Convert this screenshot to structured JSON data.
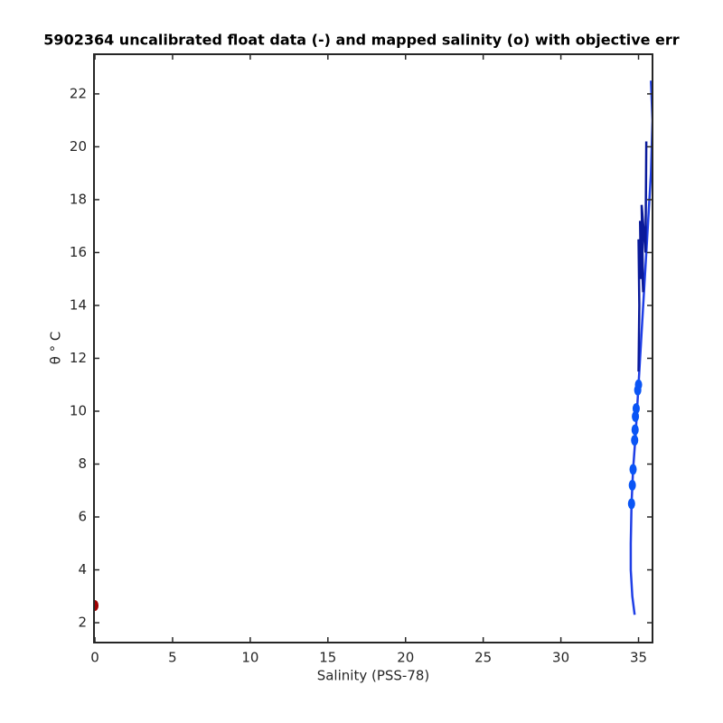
{
  "chart_data": {
    "type": "line",
    "title": "5902364 uncalibrated float data (-) and mapped salinity (o) with objective err",
    "xlabel": "Salinity (PSS-78)",
    "ylabel": "θ ° C",
    "xlim": [
      -0.06,
      35.9
    ],
    "ylim": [
      1.25,
      23.5
    ],
    "xticks": [
      0,
      5,
      10,
      15,
      20,
      25,
      30,
      35
    ],
    "yticks": [
      2,
      4,
      6,
      8,
      10,
      12,
      14,
      16,
      18,
      20,
      22
    ],
    "series": [
      {
        "mode": "line",
        "color": "#1f3fe6",
        "x": [
          34.75,
          34.6,
          34.5,
          34.5,
          34.55,
          34.65,
          34.8,
          34.9,
          35.0,
          35.2,
          35.4,
          35.6,
          35.8,
          35.9,
          35.8
        ],
        "values": [
          2.3,
          3,
          4,
          5,
          6.5,
          7.8,
          9,
          10,
          11,
          13,
          15,
          17,
          19,
          21,
          22.5
        ]
      },
      {
        "mode": "line",
        "color": "#0a1a9a",
        "x": [
          35.0,
          35.05,
          35.0,
          35.15,
          35.1,
          35.3,
          35.2,
          35.45,
          35.5
        ],
        "values": [
          11.5,
          14,
          16.5,
          15,
          17.2,
          14.5,
          17.8,
          16,
          20.2
        ]
      },
      {
        "mode": "markers",
        "color": "#0a55f5",
        "x": [
          34.55,
          34.6,
          34.65,
          34.75,
          34.78,
          34.8,
          34.85,
          34.95,
          35.0
        ],
        "values": [
          6.5,
          7.2,
          7.8,
          8.9,
          9.3,
          9.8,
          10.1,
          10.8,
          11.0
        ]
      },
      {
        "mode": "markers",
        "color": "#a00000",
        "x": [
          0
        ],
        "values": [
          2.65
        ]
      }
    ]
  }
}
